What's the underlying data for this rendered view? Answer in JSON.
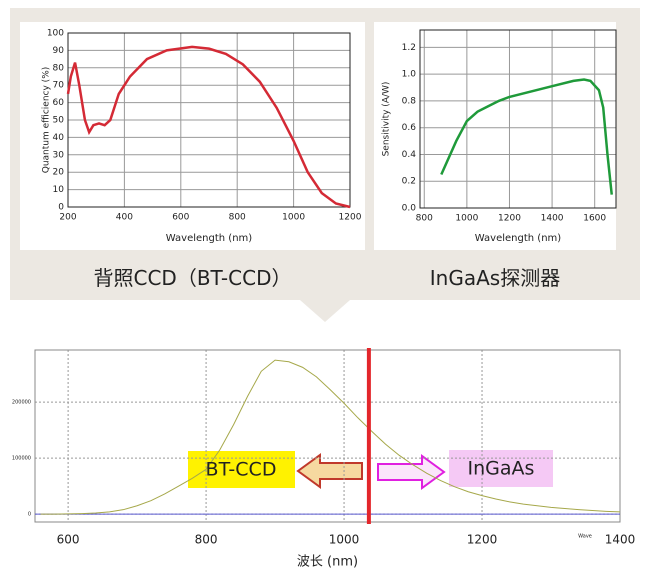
{
  "chart_data": [
    {
      "type": "line",
      "caption": "背照CCD（BT-CCD）",
      "x_label": "Wavelength (nm)",
      "y_label": "Quantum efficiency (%)",
      "x": [
        200,
        210,
        225,
        240,
        260,
        275,
        290,
        310,
        330,
        350,
        380,
        420,
        480,
        550,
        640,
        700,
        760,
        820,
        880,
        940,
        1000,
        1050,
        1100,
        1150,
        1200
      ],
      "series": [
        {
          "color": "#d42a35",
          "values": [
            65,
            75,
            83,
            70,
            50,
            43,
            47,
            48,
            47,
            50,
            65,
            75,
            85,
            90,
            92,
            91,
            88,
            82,
            72,
            57,
            38,
            20,
            8,
            2,
            0
          ]
        }
      ],
      "xlim": [
        200,
        1200
      ],
      "ylim": [
        0,
        100
      ],
      "xticks": [
        200,
        400,
        600,
        800,
        1000,
        1200
      ],
      "yticks": [
        0,
        10,
        20,
        30,
        40,
        50,
        60,
        70,
        80,
        90,
        100
      ],
      "grid": true
    },
    {
      "type": "line",
      "caption": "InGaAs探测器",
      "x_label": "Wavelength (nm)",
      "y_label": "Sensitivity (A/W)",
      "x": [
        880,
        950,
        1000,
        1050,
        1100,
        1150,
        1200,
        1300,
        1400,
        1500,
        1550,
        1580,
        1620,
        1640,
        1660,
        1680
      ],
      "series": [
        {
          "color": "#1f9a3a",
          "values": [
            0.25,
            0.5,
            0.65,
            0.72,
            0.76,
            0.8,
            0.83,
            0.87,
            0.91,
            0.95,
            0.96,
            0.95,
            0.88,
            0.75,
            0.4,
            0.1
          ]
        }
      ],
      "xlim": [
        780,
        1700
      ],
      "ylim": [
        0,
        1.33
      ],
      "xticks": [
        800,
        1000,
        1200,
        1400,
        1600
      ],
      "yticks": [
        {
          "value": 0,
          "label": "0.0"
        },
        0.2,
        0.4,
        0.6,
        0.8,
        {
          "value": 1,
          "label": "1.0"
        },
        1.2
      ],
      "grid": true
    },
    {
      "type": "line",
      "x_label": "波长 (nm)",
      "x_unit_tag": "Wave",
      "annotations": [
        "BT-CCD",
        "InGaAs"
      ],
      "x": [
        560,
        580,
        600,
        620,
        640,
        660,
        680,
        700,
        720,
        740,
        760,
        780,
        800,
        820,
        840,
        860,
        880,
        900,
        920,
        940,
        960,
        980,
        1000,
        1020,
        1040,
        1060,
        1080,
        1100,
        1120,
        1140,
        1160,
        1180,
        1200,
        1220,
        1240,
        1260,
        1280,
        1300,
        1320,
        1340,
        1360,
        1380,
        1400
      ],
      "series": [
        {
          "color": "#a6a84a",
          "values": [
            0,
            0,
            500,
            1000,
            2000,
            4000,
            8000,
            15000,
            24000,
            36000,
            50000,
            64000,
            80000,
            115000,
            160000,
            210000,
            255000,
            275000,
            272000,
            262000,
            245000,
            222000,
            198000,
            172000,
            148000,
            125000,
            105000,
            88000,
            73000,
            60000,
            49000,
            40000,
            33000,
            27000,
            22000,
            18000,
            15000,
            12000,
            10000,
            8000,
            6500,
            5000,
            4000
          ]
        }
      ],
      "marker_x": 1036,
      "marker_color": "#e3262b",
      "xlim": [
        552,
        1400
      ],
      "ylim": [
        -14000,
        293000
      ],
      "xticks": [
        600,
        800,
        1000,
        1200,
        1400
      ],
      "yticks": [
        0,
        100000,
        200000
      ],
      "grid": true
    }
  ]
}
